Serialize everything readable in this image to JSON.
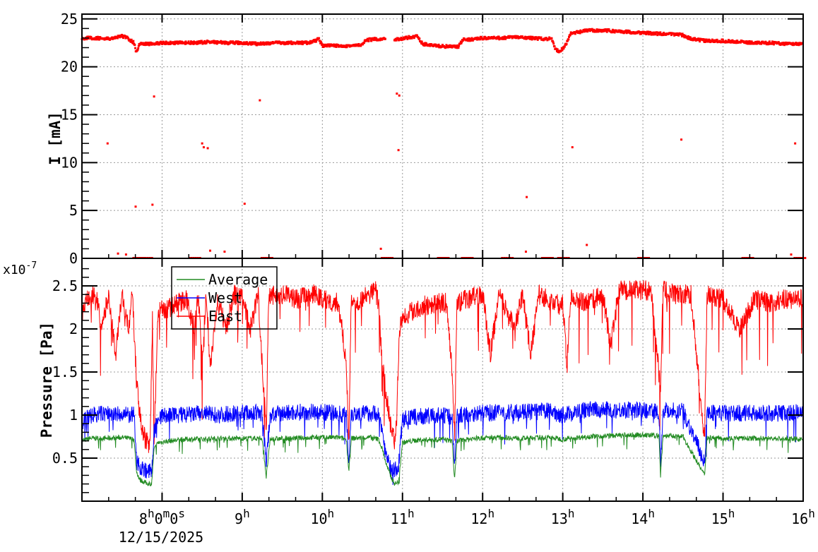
{
  "chart_data": [
    {
      "type": "scatter",
      "ylabel": "I [mA]",
      "ylim": [
        0,
        25.5
      ],
      "xlim_hours": [
        7,
        16
      ],
      "yticks": [
        "0",
        "5",
        "10",
        "15",
        "20",
        "25"
      ],
      "grid": true,
      "color": "#ff0000",
      "series": [
        {
          "x": [
            7.0,
            7.1,
            7.2,
            7.3,
            7.4,
            7.5,
            7.55,
            7.6,
            7.65,
            7.68,
            7.72,
            7.8,
            7.9,
            8.0,
            8.2,
            8.4,
            8.6,
            8.8,
            9.0,
            9.2,
            9.4,
            9.6,
            9.8,
            9.92,
            9.95,
            10.0,
            10.2,
            10.4,
            10.5,
            10.55,
            10.7,
            10.75,
            10.95,
            11.0,
            11.1,
            11.18,
            11.25,
            11.4,
            11.6,
            11.7,
            11.75,
            11.9,
            12.0,
            12.2,
            12.4,
            12.6,
            12.8,
            12.85,
            12.9,
            12.95,
            13.0,
            13.05,
            13.1,
            13.2,
            13.3,
            13.5,
            13.7,
            13.9,
            14.1,
            14.3,
            14.45,
            14.5,
            14.6,
            14.8,
            15.0,
            15.2,
            15.4,
            15.6,
            15.8,
            16.0
          ],
          "y": [
            23.0,
            23.0,
            23.0,
            22.9,
            23.0,
            23.2,
            23.1,
            22.8,
            22.5,
            21.5,
            22.4,
            22.4,
            22.4,
            22.5,
            22.5,
            22.5,
            22.6,
            22.5,
            22.5,
            22.4,
            22.5,
            22.5,
            22.5,
            22.7,
            23.0,
            22.2,
            22.2,
            22.2,
            22.3,
            22.8,
            22.9,
            22.9,
            22.9,
            22.9,
            23.1,
            23.2,
            22.4,
            22.2,
            22.1,
            22.1,
            22.8,
            22.9,
            23.0,
            23.0,
            23.1,
            23.0,
            22.9,
            23.1,
            22.0,
            21.6,
            21.9,
            22.5,
            23.5,
            23.6,
            23.8,
            23.8,
            23.7,
            23.6,
            23.5,
            23.4,
            23.4,
            23.3,
            22.9,
            22.7,
            22.7,
            22.6,
            22.5,
            22.5,
            22.4,
            22.4
          ]
        },
        {
          "name": "",
          "x": [
            7.32,
            7.45,
            7.55,
            7.67,
            7.88,
            7.9,
            8.5,
            8.52,
            8.57,
            8.6,
            8.78,
            9.03,
            9.22,
            10.73,
            10.93,
            10.95,
            10.96,
            12.54,
            12.55,
            13.12,
            13.3,
            14.48,
            15.85,
            15.9,
            7.7,
            7.8,
            8.4,
            9.3,
            10.8,
            11.5,
            11.8,
            12.3,
            12.8,
            13.0,
            14.0,
            15.3,
            15.95
          ],
          "y": [
            12.0,
            0.5,
            0.4,
            5.4,
            5.6,
            16.9,
            12.0,
            11.6,
            11.5,
            0.8,
            0.7,
            5.7,
            16.5,
            1.0,
            17.2,
            11.3,
            17.0,
            0.7,
            6.4,
            11.6,
            1.4,
            12.4,
            0.4,
            12.0,
            0,
            0,
            0,
            0,
            0,
            0,
            0,
            0,
            0,
            0,
            0,
            0,
            0
          ]
        }
      ]
    },
    {
      "type": "line",
      "ylabel": "Pressure [Pa]",
      "y_multiplier": "x10",
      "y_exponent": "-7",
      "ylim": [
        0,
        2.82
      ],
      "yticks": [
        "0.5",
        "1",
        "1.5",
        "2",
        "2.5"
      ],
      "grid": true,
      "legend_placement": "top-left",
      "x_ticks": [
        {
          "h": "8",
          "rest": "0",
          "m": "m",
          "s_val": "0",
          "s": "s"
        },
        {
          "h": "9"
        },
        {
          "h": "10"
        },
        {
          "h": "11"
        },
        {
          "h": "12"
        },
        {
          "h": "13"
        },
        {
          "h": "14"
        },
        {
          "h": "15"
        },
        {
          "h": "16"
        }
      ],
      "x_tick_unit": "h",
      "x_date": "12/15/2025",
      "series": [
        {
          "name": "Average",
          "color": "#228b22",
          "x": [
            7.0,
            7.1,
            7.3,
            7.5,
            7.65,
            7.68,
            7.72,
            7.8,
            7.87,
            7.9,
            7.95,
            8.1,
            8.3,
            8.5,
            8.7,
            9.0,
            9.25,
            9.3,
            9.35,
            9.6,
            9.9,
            10.2,
            10.3,
            10.33,
            10.36,
            10.6,
            10.7,
            10.75,
            10.8,
            10.85,
            10.9,
            10.95,
            11.0,
            11.2,
            11.5,
            11.62,
            11.65,
            11.68,
            11.9,
            12.2,
            12.5,
            12.8,
            13.0,
            13.3,
            13.6,
            13.9,
            14.2,
            14.22,
            14.25,
            14.5,
            14.77,
            14.8,
            15.1,
            15.5,
            16.0
          ],
          "y": [
            0.7,
            0.73,
            0.73,
            0.74,
            0.72,
            0.35,
            0.25,
            0.21,
            0.2,
            0.6,
            0.68,
            0.7,
            0.72,
            0.72,
            0.73,
            0.73,
            0.73,
            0.28,
            0.72,
            0.73,
            0.74,
            0.74,
            0.72,
            0.35,
            0.73,
            0.74,
            0.72,
            0.6,
            0.42,
            0.3,
            0.2,
            0.22,
            0.68,
            0.71,
            0.72,
            0.7,
            0.23,
            0.7,
            0.73,
            0.74,
            0.73,
            0.74,
            0.72,
            0.75,
            0.76,
            0.77,
            0.76,
            0.3,
            0.76,
            0.75,
            0.3,
            0.74,
            0.73,
            0.73,
            0.72
          ]
        },
        {
          "name": "West",
          "color": "#0000ff",
          "x": [
            7.0,
            7.1,
            7.3,
            7.5,
            7.65,
            7.68,
            7.72,
            7.8,
            7.87,
            7.9,
            7.95,
            8.1,
            8.3,
            8.5,
            8.7,
            9.0,
            9.25,
            9.3,
            9.35,
            9.6,
            9.9,
            10.2,
            10.3,
            10.33,
            10.36,
            10.6,
            10.7,
            10.75,
            10.8,
            10.85,
            10.9,
            10.95,
            11.0,
            11.2,
            11.5,
            11.62,
            11.65,
            11.68,
            11.9,
            12.2,
            12.5,
            12.8,
            13.0,
            13.3,
            13.6,
            13.9,
            14.2,
            14.22,
            14.25,
            14.5,
            14.77,
            14.8,
            15.1,
            15.5,
            16.0
          ],
          "y": [
            0.9,
            1.0,
            1.02,
            1.0,
            1.0,
            0.5,
            0.4,
            0.36,
            0.33,
            0.8,
            0.98,
            1.0,
            1.0,
            1.02,
            1.0,
            1.03,
            1.02,
            0.45,
            1.0,
            1.03,
            1.04,
            1.02,
            1.0,
            0.45,
            1.02,
            1.02,
            1.02,
            0.8,
            0.5,
            0.4,
            0.35,
            0.4,
            0.95,
            0.98,
            1.0,
            0.98,
            0.4,
            1.0,
            1.02,
            1.03,
            1.03,
            1.05,
            1.0,
            1.06,
            1.06,
            1.06,
            1.05,
            0.4,
            1.06,
            1.05,
            0.45,
            1.03,
            1.02,
            1.02,
            1.03
          ]
        },
        {
          "name": "East",
          "color": "#ff0000",
          "x": [
            7.0,
            7.08,
            7.17,
            7.25,
            7.33,
            7.42,
            7.5,
            7.58,
            7.63,
            7.67,
            7.72,
            7.78,
            7.85,
            7.88,
            7.9,
            7.95,
            8.1,
            8.2,
            8.3,
            8.4,
            8.45,
            8.5,
            8.55,
            8.6,
            8.7,
            8.8,
            8.9,
            9.0,
            9.1,
            9.2,
            9.3,
            9.33,
            9.5,
            9.7,
            9.9,
            10.0,
            10.2,
            10.3,
            10.33,
            10.36,
            10.5,
            10.6,
            10.65,
            10.7,
            10.75,
            10.8,
            10.85,
            10.9,
            10.93,
            10.96,
            11.0,
            11.2,
            11.4,
            11.55,
            11.62,
            11.65,
            11.68,
            11.8,
            12.0,
            12.1,
            12.2,
            12.4,
            12.5,
            12.6,
            12.7,
            12.9,
            13.0,
            13.05,
            13.1,
            13.3,
            13.5,
            13.6,
            13.7,
            13.9,
            14.1,
            14.22,
            14.25,
            14.4,
            14.6,
            14.77,
            14.8,
            15.0,
            15.2,
            15.4,
            15.6,
            15.8,
            16.0
          ],
          "y": [
            2.2,
            2.35,
            2.4,
            2.0,
            2.4,
            1.7,
            2.4,
            2.0,
            2.4,
            1.6,
            1.0,
            0.75,
            0.62,
            2.1,
            0.7,
            2.2,
            2.25,
            2.3,
            2.35,
            2.0,
            2.4,
            1.6,
            2.4,
            1.6,
            2.35,
            2.0,
            2.4,
            2.35,
            2.0,
            2.4,
            0.8,
            2.4,
            2.4,
            2.35,
            2.4,
            2.35,
            2.3,
            1.6,
            0.7,
            2.3,
            2.35,
            2.4,
            2.5,
            2.3,
            1.6,
            1.2,
            0.9,
            0.7,
            1.0,
            2.0,
            2.15,
            2.25,
            2.3,
            2.3,
            1.5,
            0.7,
            2.3,
            2.35,
            2.4,
            1.7,
            2.4,
            2.0,
            2.4,
            1.7,
            2.4,
            2.3,
            2.3,
            1.6,
            2.4,
            2.3,
            2.4,
            1.8,
            2.45,
            2.45,
            2.45,
            1.3,
            2.45,
            2.4,
            2.4,
            0.7,
            2.4,
            2.35,
            2.0,
            2.35,
            2.3,
            2.35,
            2.35
          ]
        }
      ]
    }
  ]
}
